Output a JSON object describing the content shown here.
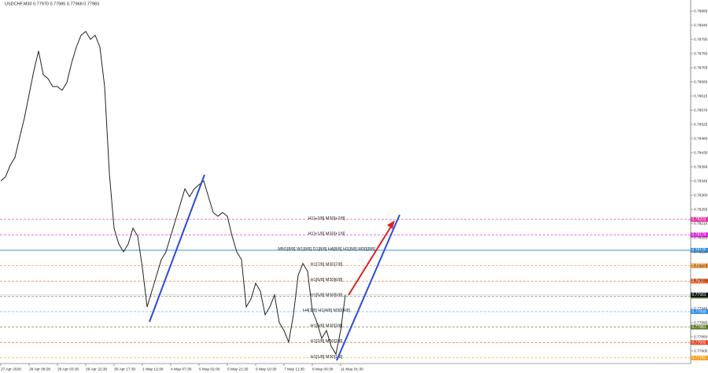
{
  "chart_data": {
    "type": "line",
    "title": "USDCHF,M30  0.77970 0.77985 0.77968 0.77983",
    "categories": [
      "27 Apr 2026",
      null,
      null,
      null,
      null,
      null,
      "28 Apr 08:30",
      null,
      null,
      null,
      null,
      null,
      "29 Apr 03:30",
      null,
      null,
      null,
      null,
      null,
      "29 Apr 22:30",
      null,
      null,
      null,
      null,
      null,
      "30 Apr 17:30",
      null,
      null,
      null,
      null,
      null,
      "1 May 12:30",
      null,
      null,
      null,
      null,
      null,
      "4 May 07:30",
      null,
      null,
      null,
      null,
      null,
      "5 May 02:30",
      null,
      null,
      null,
      null,
      null,
      "5 May 21:30",
      null,
      null,
      null,
      null,
      null,
      "6 May 16:30",
      null,
      null,
      null,
      null,
      null,
      "7 May 11:30",
      null,
      null,
      null,
      null,
      null,
      "8 May 06:30",
      null,
      null,
      null,
      null,
      null,
      "11 May 01:30",
      null
    ],
    "series": [
      {
        "name": "USDCHF,M30",
        "color": "#222222",
        "values": [
          0.78345,
          0.78358,
          0.78395,
          0.7842,
          0.78483,
          0.78545,
          0.7862,
          0.78695,
          0.78758,
          0.78683,
          0.7867,
          0.78645,
          0.78645,
          0.78633,
          0.78658,
          0.7872,
          0.7877,
          0.78808,
          0.7882,
          0.78795,
          0.78808,
          0.7877,
          0.78645,
          0.7837,
          0.78195,
          0.78145,
          0.7812,
          0.78145,
          0.78195,
          0.7817,
          0.7807,
          0.77945,
          0.77995,
          0.78045,
          0.78095,
          0.7812,
          0.7817,
          0.7822,
          0.7827,
          0.7832,
          0.78295,
          0.7832,
          0.78333,
          0.78345,
          0.78295,
          0.78245,
          0.78233,
          0.78245,
          0.78233,
          0.7817,
          0.7812,
          0.78095,
          0.77945,
          0.7797,
          0.7802,
          0.77995,
          0.7792,
          0.77945,
          0.77983,
          0.77895,
          0.7787,
          0.77833,
          0.7792,
          0.78045,
          0.78083,
          0.78058,
          0.77933,
          0.77895,
          0.77845,
          0.7787,
          0.7782,
          0.77795,
          0.7787,
          0.77983
        ]
      }
    ],
    "ylim": [
      0.77765,
      0.7892
    ],
    "yticks": [
      0.77805,
      {
        "value": 0.7785,
        "label": "0.77850"
      },
      0.77895,
      {
        "value": 0.7794,
        "label": "0.77940"
      },
      0.77985,
      {
        "value": 0.7803,
        "label": "0.78030"
      },
      0.78075,
      {
        "value": 0.7812,
        "label": "0.78120"
      },
      0.78165,
      {
        "value": 0.7821,
        "label": "0.78210"
      },
      0.78255,
      {
        "value": 0.783,
        "label": "0.78300"
      },
      0.78345,
      {
        "value": 0.7839,
        "label": "0.78390"
      },
      0.78435,
      {
        "value": 0.7848,
        "label": "0.78480"
      },
      0.78525,
      {
        "value": 0.7857,
        "label": "0.78570"
      },
      0.78615,
      {
        "value": 0.7866,
        "label": "0.78660"
      },
      0.78705,
      {
        "value": 0.7875,
        "label": "0.78750"
      },
      0.78795,
      {
        "value": 0.7884,
        "label": "0.78840"
      },
      0.78885
    ],
    "levels": [
      {
        "label": "H1[+2/8] M30[+2/8]",
        "value": 0.78223,
        "color": "#e0309a",
        "dashed": true
      },
      {
        "label": "H1[+1/8] M30[+1/8]",
        "value": 0.78174,
        "color": "#e020e0",
        "dashed": true
      },
      {
        "label": "MN1[8/8] W1[8/8] D1[8/8] H4[8/8] H1[8/8] M30[8/8]",
        "value": 0.78125,
        "color": "#3d8fe0",
        "dashed": false
      },
      {
        "label": "H1[7/8] M30[7/8]",
        "value": 0.78076,
        "color": "#f0902a",
        "dashed": true
      },
      {
        "label": "H1[6/8] M30[6/8]",
        "value": 0.78027,
        "color": "#f05a1e",
        "dashed": true
      },
      {
        "label": "H1[5/8] M30[5/8]",
        "value": 0.77979,
        "color": "#6b8a55",
        "dashed": true
      },
      {
        "label": "H4[1/8] H1[4/8] M30[4/8]",
        "value": 0.7793,
        "value_label": "0.77930",
        "color": "#2f8fe8",
        "dashed": true
      },
      {
        "label": "H1[3/8] M30[3/8]",
        "value": 0.77881,
        "color": "#5c7a2a",
        "dashed": true
      },
      {
        "label": "H1[2/8] M30[2/8]",
        "value": 0.77832,
        "color": "#e8452a",
        "dashed": true
      },
      {
        "label": "H1[1/8] M30[1/8]",
        "value": 0.77783,
        "color": "#f0a020",
        "dashed": true
      }
    ],
    "current_price": 0.77983
  }
}
